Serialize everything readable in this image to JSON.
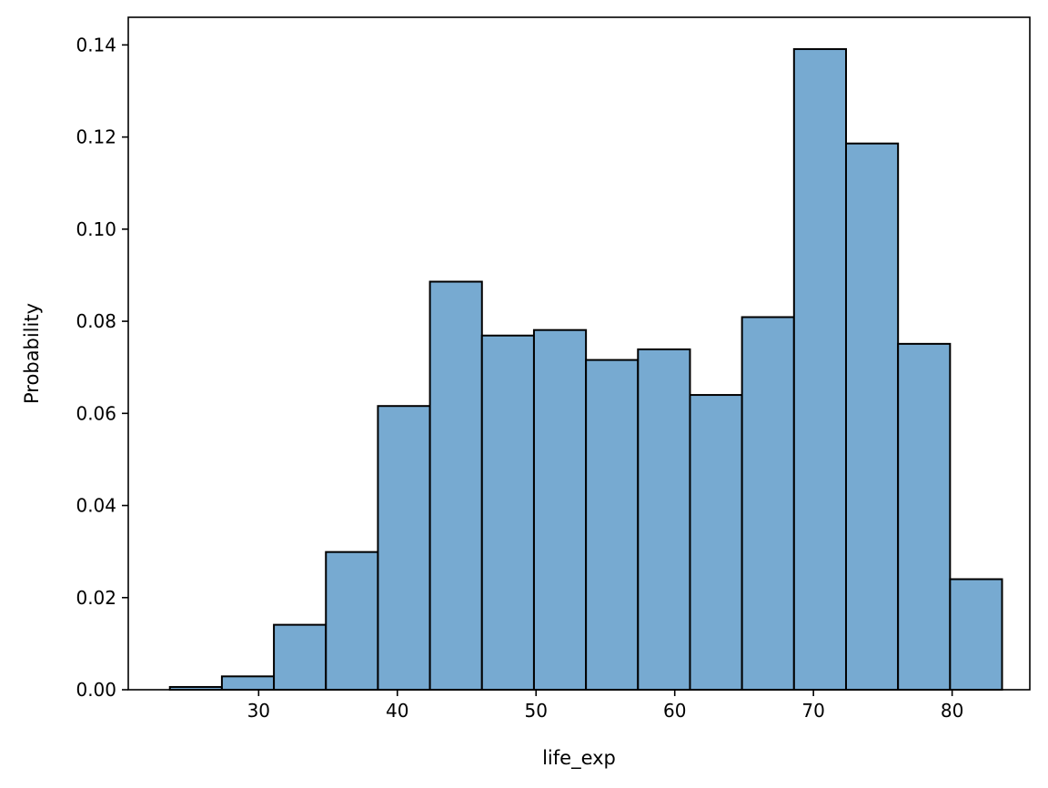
{
  "chart_data": {
    "type": "histogram",
    "title": "",
    "xlabel": "life_exp",
    "ylabel": "Probability",
    "bin_start": 23.6,
    "bin_width": 3.75,
    "values": [
      0.0006,
      0.0029,
      0.0141,
      0.0299,
      0.0616,
      0.0886,
      0.0769,
      0.0781,
      0.0716,
      0.0739,
      0.064,
      0.0809,
      0.1391,
      0.1186,
      0.0751,
      0.024
    ],
    "xlim": [
      20.6,
      85.6
    ],
    "ylim": [
      0,
      0.146
    ],
    "xticks": [
      30,
      40,
      50,
      60,
      70,
      80
    ],
    "yticks": [
      0.0,
      0.02,
      0.04,
      0.06,
      0.08,
      0.1,
      0.12,
      0.14
    ],
    "xtick_labels": [
      "30",
      "40",
      "50",
      "60",
      "70",
      "80"
    ],
    "ytick_labels": [
      "0.00",
      "0.02",
      "0.04",
      "0.06",
      "0.08",
      "0.10",
      "0.12",
      "0.14"
    ],
    "grid": false,
    "bar_color": "#77aad1",
    "edge_color": "#000000"
  }
}
